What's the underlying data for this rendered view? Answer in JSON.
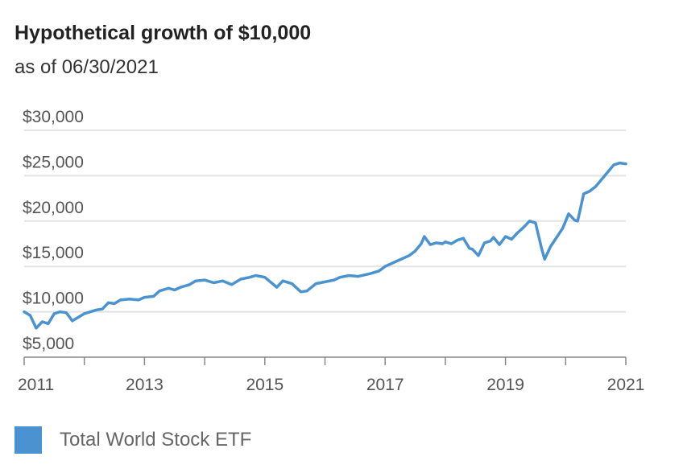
{
  "title": "Hypothetical growth of $10,000",
  "subtitle": "as of 06/30/2021",
  "colors": {
    "series": "#4a93d0",
    "grid": "#e3e3e3",
    "axis": "#888888"
  },
  "chart_data": {
    "type": "line",
    "title": "Hypothetical growth of $10,000",
    "subtitle": "as of 06/30/2021",
    "xlabel": "",
    "ylabel": "",
    "xlim": [
      2011.0,
      2021.0
    ],
    "ylim": [
      5000,
      30000
    ],
    "grid": true,
    "legend_position": "bottom-left",
    "y_ticks": [
      {
        "value": 5000,
        "label": "$5,000"
      },
      {
        "value": 10000,
        "label": "$10,000"
      },
      {
        "value": 15000,
        "label": "$15,000"
      },
      {
        "value": 20000,
        "label": "$20,000"
      },
      {
        "value": 25000,
        "label": "$25,000"
      },
      {
        "value": 30000,
        "label": "$30,000"
      }
    ],
    "x_ticks": [
      {
        "value": 2011,
        "label": "2011"
      },
      {
        "value": 2013,
        "label": "2013"
      },
      {
        "value": 2015,
        "label": "2015"
      },
      {
        "value": 2017,
        "label": "2017"
      },
      {
        "value": 2019,
        "label": "2019"
      },
      {
        "value": 2021,
        "label": "2021"
      }
    ],
    "x_minor_ticks": [
      2012,
      2014,
      2016,
      2018,
      2020
    ],
    "series": [
      {
        "name": "Total World Stock ETF",
        "x": [
          2011.0,
          2011.1,
          2011.2,
          2011.3,
          2011.4,
          2011.5,
          2011.6,
          2011.7,
          2011.8,
          2011.9,
          2012.0,
          2012.2,
          2012.3,
          2012.4,
          2012.5,
          2012.6,
          2012.75,
          2012.9,
          2013.0,
          2013.15,
          2013.25,
          2013.4,
          2013.5,
          2013.6,
          2013.75,
          2013.85,
          2014.0,
          2014.15,
          2014.3,
          2014.45,
          2014.6,
          2014.75,
          2014.85,
          2015.0,
          2015.2,
          2015.3,
          2015.45,
          2015.6,
          2015.7,
          2015.85,
          2016.0,
          2016.15,
          2016.25,
          2016.4,
          2016.55,
          2016.75,
          2016.9,
          2017.0,
          2017.2,
          2017.4,
          2017.5,
          2017.6,
          2017.65,
          2017.75,
          2017.85,
          2017.95,
          2018.0,
          2018.1,
          2018.2,
          2018.3,
          2018.4,
          2018.45,
          2018.55,
          2018.65,
          2018.75,
          2018.8,
          2018.9,
          2019.0,
          2019.1,
          2019.2,
          2019.3,
          2019.4,
          2019.5,
          2019.6,
          2019.65,
          2019.75,
          2019.85,
          2019.95,
          2020.0,
          2020.05,
          2020.15,
          2020.2,
          2020.3,
          2020.4,
          2020.5,
          2020.6,
          2020.7,
          2020.8,
          2020.9,
          2021.0
        ],
        "y": [
          10000,
          9600,
          8200,
          8900,
          8700,
          9800,
          10000,
          9900,
          9000,
          9400,
          9800,
          10200,
          10300,
          11000,
          10900,
          11300,
          11400,
          11300,
          11600,
          11700,
          12300,
          12600,
          12400,
          12700,
          13000,
          13400,
          13500,
          13200,
          13400,
          13000,
          13600,
          13800,
          14000,
          13800,
          12700,
          13400,
          13100,
          12200,
          12300,
          13100,
          13300,
          13500,
          13800,
          14000,
          13900,
          14200,
          14500,
          15000,
          15600,
          16200,
          16700,
          17500,
          18300,
          17400,
          17600,
          17500,
          17700,
          17500,
          17900,
          18100,
          17000,
          16900,
          16200,
          17600,
          17800,
          18200,
          17400,
          18300,
          18000,
          18700,
          19300,
          20000,
          19800,
          17000,
          15800,
          17200,
          18200,
          19200,
          20000,
          20800,
          20100,
          20000,
          23000,
          23300,
          23800,
          24600,
          25400,
          26200,
          26400,
          26300
        ]
      }
    ]
  }
}
